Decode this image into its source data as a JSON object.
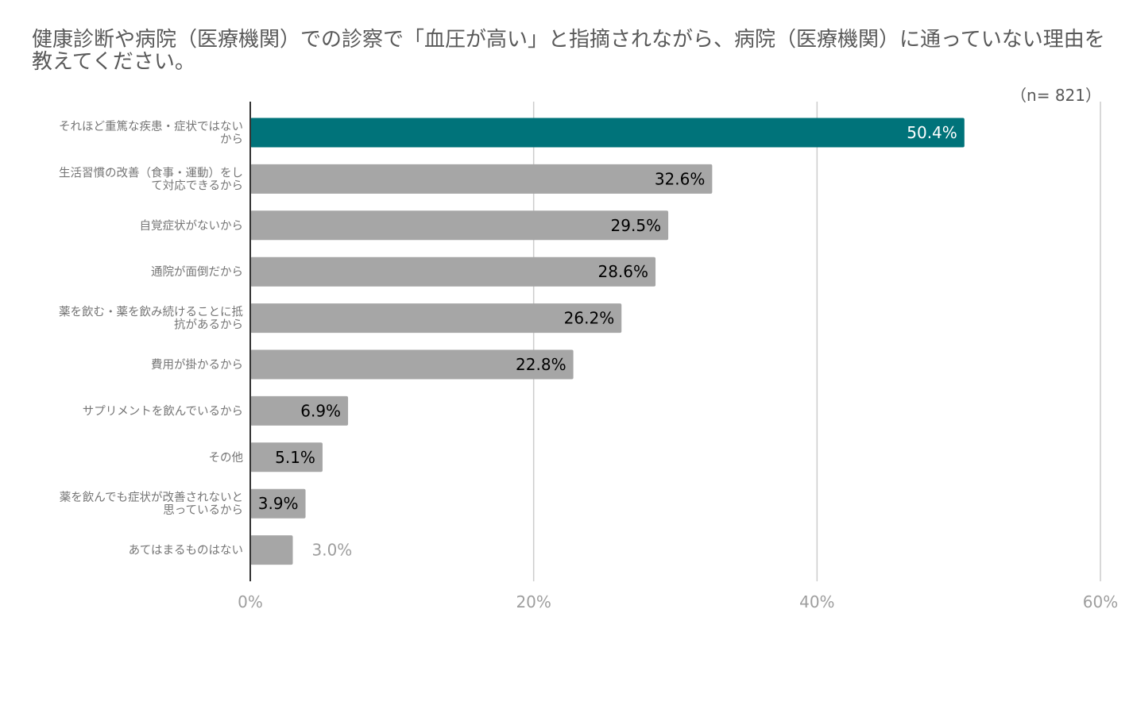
{
  "chart_data": {
    "type": "bar",
    "orientation": "horizontal",
    "title": "健康診断や病院（医療機関）での診察で「血圧が高い」と指摘されながら、病院（医療機関）に通っていない理由を教えてください。",
    "note": "（n= 821）",
    "xlabel": "",
    "ylabel": "",
    "xlim": [
      0,
      60
    ],
    "x_ticks": [
      "0%",
      "20%",
      "40%",
      "60%"
    ],
    "grid": "vertical",
    "categories": [
      [
        "それほど重篤な疾患・症状ではない",
        "から"
      ],
      [
        "生活習慣の改善（食事・運動）をし",
        "て対応できるから"
      ],
      [
        "自覚症状がないから"
      ],
      [
        "通院が面倒だから"
      ],
      [
        "薬を飲む・薬を飲み続けることに抵",
        "抗があるから"
      ],
      [
        "費用が掛かるから"
      ],
      [
        "サプリメントを飲んでいるから"
      ],
      [
        "その他"
      ],
      [
        "薬を飲んでも症状が改善されないと",
        "思っているから"
      ],
      [
        "あてはまるものはない"
      ]
    ],
    "values": [
      50.4,
      32.6,
      29.5,
      28.6,
      26.2,
      22.8,
      6.9,
      5.1,
      3.9,
      3.0
    ],
    "labels": [
      "50.4%",
      "32.6%",
      "29.5%",
      "28.6%",
      "26.2%",
      "22.8%",
      "6.9%",
      "5.1%",
      "3.9%",
      "3.0%"
    ],
    "highlight_index": 0,
    "colors": {
      "highlight": "#00737a",
      "bar": "#a6a6a6",
      "grid": "#cccccc",
      "axis": "#333333",
      "label_inside": "#000000",
      "label_highlight": "#ffffff",
      "label_outside": "#9e9e9e"
    }
  }
}
